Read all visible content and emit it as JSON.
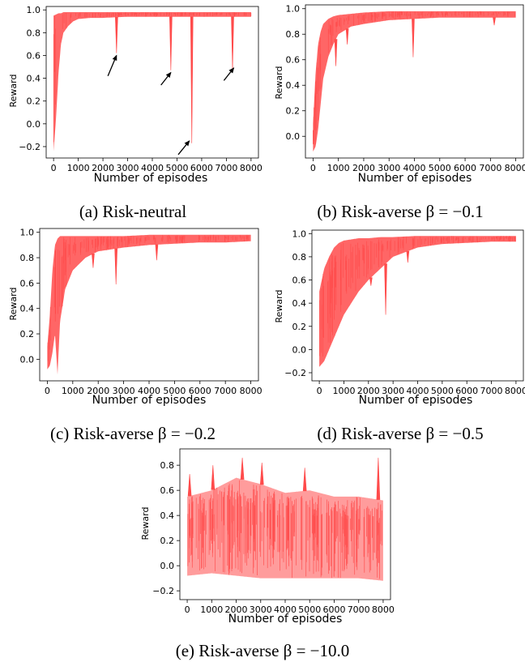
{
  "colors": {
    "series": "#ff4b4b",
    "series_light": "#ff9999"
  },
  "chart_data": [
    {
      "id": "a",
      "type": "area",
      "caption": "(a) Risk-neutral",
      "xlabel": "Number of episodes",
      "ylabel": "Reward",
      "xlim": [
        -300,
        8300
      ],
      "ylim": [
        -0.3,
        1.03
      ],
      "xticks": [
        0,
        1000,
        2000,
        3000,
        4000,
        5000,
        6000,
        7000,
        8000
      ],
      "yticks": [
        -0.2,
        0.0,
        0.2,
        0.4,
        0.6,
        0.8,
        1.0
      ],
      "ytick_labels": [
        "−0.2",
        "0.0",
        "0.2",
        "0.4",
        "0.6",
        "0.8",
        "1.0"
      ],
      "grid": false,
      "x": [
        0,
        100,
        200,
        300,
        400,
        600,
        800,
        1000,
        1500,
        2000,
        3000,
        4000,
        5000,
        6000,
        7000,
        8000
      ],
      "upper": [
        0.95,
        0.96,
        0.97,
        0.97,
        0.98,
        0.98,
        0.98,
        0.98,
        0.98,
        0.98,
        0.98,
        0.98,
        0.98,
        0.98,
        0.98,
        0.98
      ],
      "lower": [
        -0.24,
        0.05,
        0.45,
        0.7,
        0.8,
        0.86,
        0.9,
        0.92,
        0.93,
        0.93,
        0.94,
        0.94,
        0.94,
        0.94,
        0.94,
        0.94
      ],
      "dips": [
        [
          2550,
          0.62
        ],
        [
          4750,
          0.47
        ],
        [
          5600,
          -0.17
        ],
        [
          7250,
          0.47
        ]
      ],
      "annotations": [
        {
          "type": "arrow",
          "from": [
            2200,
            0.42
          ],
          "to": [
            2550,
            0.6
          ]
        },
        {
          "type": "arrow",
          "from": [
            4350,
            0.34
          ],
          "to": [
            4750,
            0.45
          ]
        },
        {
          "type": "arrow",
          "from": [
            5050,
            -0.27
          ],
          "to": [
            5500,
            -0.15
          ]
        },
        {
          "type": "arrow",
          "from": [
            6900,
            0.38
          ],
          "to": [
            7300,
            0.49
          ]
        }
      ]
    },
    {
      "id": "b",
      "type": "area",
      "caption": "(b) Risk-averse β = −0.1",
      "xlabel": "Number of episodes",
      "ylabel": "Reward",
      "xlim": [
        -300,
        8300
      ],
      "ylim": [
        -0.17,
        1.03
      ],
      "xticks": [
        0,
        1000,
        2000,
        3000,
        4000,
        5000,
        6000,
        7000,
        8000
      ],
      "yticks": [
        0.0,
        0.2,
        0.4,
        0.6,
        0.8,
        1.0
      ],
      "ytick_labels": [
        "0.0",
        "0.2",
        "0.4",
        "0.6",
        "0.8",
        "1.0"
      ],
      "grid": false,
      "x": [
        0,
        100,
        200,
        300,
        400,
        600,
        800,
        1000,
        1500,
        2000,
        3000,
        4000,
        5000,
        6000,
        7000,
        8000
      ],
      "upper": [
        0.1,
        0.5,
        0.72,
        0.82,
        0.88,
        0.92,
        0.94,
        0.95,
        0.96,
        0.97,
        0.98,
        0.98,
        0.98,
        0.98,
        0.98,
        0.98
      ],
      "lower": [
        -0.12,
        -0.08,
        0.05,
        0.25,
        0.45,
        0.62,
        0.72,
        0.8,
        0.86,
        0.88,
        0.91,
        0.92,
        0.93,
        0.93,
        0.93,
        0.93
      ],
      "dips": [
        [
          900,
          0.55
        ],
        [
          1350,
          0.72
        ],
        [
          3950,
          0.62
        ],
        [
          7150,
          0.87
        ]
      ],
      "annotations": []
    },
    {
      "id": "c",
      "type": "area",
      "caption": "(c) Risk-averse β = −0.2",
      "xlabel": "Number of episodes",
      "ylabel": "Reward",
      "xlim": [
        -300,
        8300
      ],
      "ylim": [
        -0.17,
        1.03
      ],
      "xticks": [
        0,
        1000,
        2000,
        3000,
        4000,
        5000,
        6000,
        7000,
        8000
      ],
      "yticks": [
        0.0,
        0.2,
        0.4,
        0.6,
        0.8,
        1.0
      ],
      "ytick_labels": [
        "0.0",
        "0.2",
        "0.4",
        "0.6",
        "0.8",
        "1.0"
      ],
      "grid": false,
      "x": [
        0,
        100,
        200,
        300,
        400,
        500,
        700,
        1000,
        1500,
        2000,
        3000,
        4000,
        5000,
        6000,
        7000,
        8000
      ],
      "upper": [
        0.1,
        0.35,
        0.7,
        0.9,
        0.95,
        0.97,
        0.97,
        0.97,
        0.97,
        0.97,
        0.97,
        0.98,
        0.98,
        0.98,
        0.98,
        0.98
      ],
      "lower": [
        -0.08,
        -0.05,
        0.05,
        0.2,
        -0.12,
        0.3,
        0.55,
        0.7,
        0.8,
        0.85,
        0.88,
        0.9,
        0.91,
        0.92,
        0.92,
        0.93
      ],
      "dips": [
        [
          2700,
          0.59
        ],
        [
          1800,
          0.72
        ],
        [
          4300,
          0.78
        ]
      ],
      "annotations": []
    },
    {
      "id": "d",
      "type": "area",
      "caption": "(d) Risk-averse β = −0.5",
      "xlabel": "Number of episodes",
      "ylabel": "Reward",
      "xlim": [
        -300,
        8300
      ],
      "ylim": [
        -0.27,
        1.03
      ],
      "xticks": [
        0,
        1000,
        2000,
        3000,
        4000,
        5000,
        6000,
        7000,
        8000
      ],
      "yticks": [
        -0.2,
        0.0,
        0.2,
        0.4,
        0.6,
        0.8,
        1.0
      ],
      "ytick_labels": [
        "−0.2",
        "0.0",
        "0.2",
        "0.4",
        "0.6",
        "0.8",
        "1.0"
      ],
      "grid": false,
      "x": [
        0,
        200,
        400,
        600,
        800,
        1000,
        1300,
        1600,
        2000,
        2500,
        3000,
        4000,
        5000,
        6000,
        7000,
        8000
      ],
      "upper": [
        0.5,
        0.7,
        0.8,
        0.88,
        0.92,
        0.94,
        0.95,
        0.96,
        0.96,
        0.97,
        0.97,
        0.98,
        0.98,
        0.98,
        0.98,
        0.98
      ],
      "lower": [
        -0.15,
        -0.1,
        0.0,
        0.1,
        0.2,
        0.3,
        0.4,
        0.5,
        0.6,
        0.7,
        0.8,
        0.88,
        0.91,
        0.92,
        0.93,
        0.93
      ],
      "dips": [
        [
          2700,
          0.3
        ],
        [
          2100,
          0.55
        ],
        [
          3600,
          0.75
        ]
      ],
      "annotations": []
    },
    {
      "id": "e",
      "type": "area",
      "caption": "(e) Risk-averse β = −10.0",
      "xlabel": "Number of episodes",
      "ylabel": "Reward",
      "xlim": [
        -300,
        8300
      ],
      "ylim": [
        -0.27,
        0.93
      ],
      "xticks": [
        0,
        1000,
        2000,
        3000,
        4000,
        5000,
        6000,
        7000,
        8000
      ],
      "yticks": [
        -0.2,
        0.0,
        0.2,
        0.4,
        0.6,
        0.8
      ],
      "ytick_labels": [
        "−0.2",
        "0.0",
        "0.2",
        "0.4",
        "0.6",
        "0.8"
      ],
      "grid": false,
      "x": [
        0,
        1000,
        2000,
        3000,
        4000,
        5000,
        6000,
        7000,
        8000
      ],
      "upper": [
        0.55,
        0.6,
        0.7,
        0.65,
        0.58,
        0.6,
        0.55,
        0.55,
        0.52
      ],
      "lower": [
        -0.08,
        -0.06,
        -0.08,
        -0.1,
        -0.1,
        -0.1,
        -0.1,
        -0.1,
        -0.12
      ],
      "peaks": [
        [
          100,
          0.73
        ],
        [
          1050,
          0.8
        ],
        [
          2250,
          0.86
        ],
        [
          3050,
          0.82
        ],
        [
          4800,
          0.78
        ],
        [
          7800,
          0.86
        ]
      ],
      "annotations": []
    }
  ]
}
